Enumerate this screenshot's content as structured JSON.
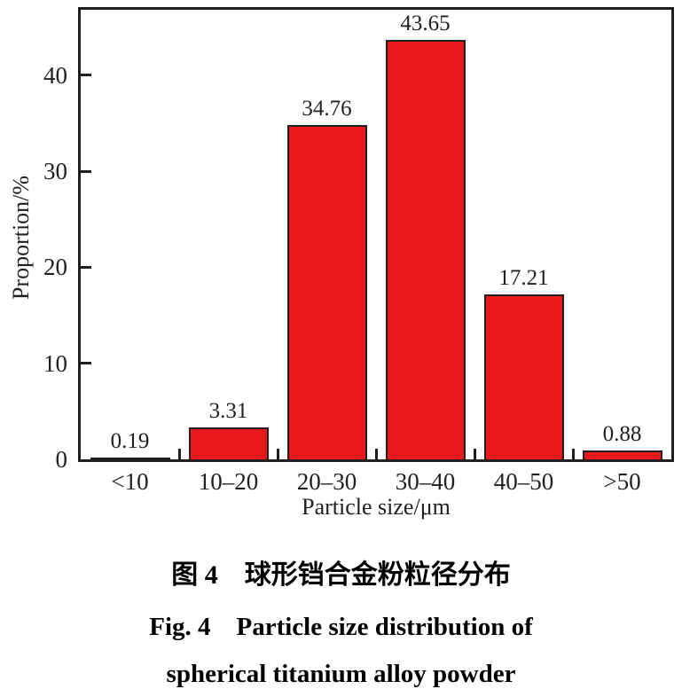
{
  "chart_data": {
    "type": "bar",
    "title": "",
    "categories": [
      "<10",
      "10–20",
      "20–30",
      "30–40",
      "40–50",
      ">50"
    ],
    "values": [
      0.19,
      3.31,
      34.76,
      43.65,
      17.21,
      0.88
    ],
    "value_labels": [
      "0.19",
      "3.31",
      "34.76",
      "43.65",
      "17.21",
      "0.88"
    ],
    "xlabel": "Particle size/μm",
    "ylabel": "Proportion/%",
    "ytick_labels": [
      "0",
      "10",
      "20",
      "30",
      "40"
    ],
    "ytick_values": [
      0,
      10,
      20,
      30,
      40
    ],
    "ylim": [
      0,
      46.8
    ],
    "grid": false,
    "legend": null,
    "bar_color": "#e8181c",
    "bar_border_color": "#231f20",
    "axis_color": "#231f20"
  },
  "caption": {
    "line1": "图 4　球形铛合金粉粒径分布",
    "line2": "Fig. 4 Particle size distribution of",
    "line3": "spherical titanium alloy powder"
  }
}
